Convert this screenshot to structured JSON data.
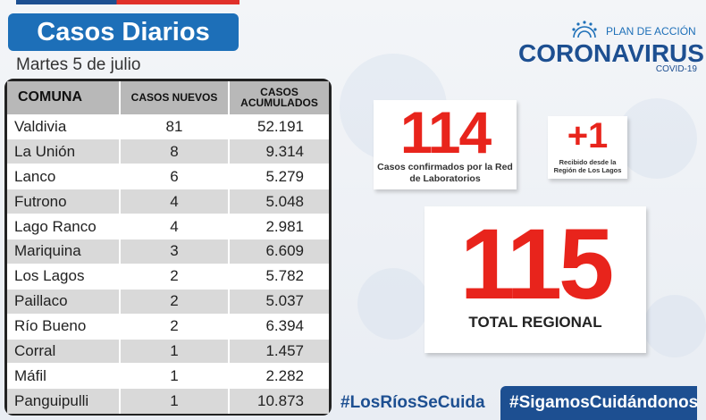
{
  "header": {
    "title": "Casos Diarios",
    "date": "Martes 5 de  julio"
  },
  "logo": {
    "plan": "PLAN DE ACCIÓN",
    "name": "CORONAVIRUS",
    "sub": "COVID-19"
  },
  "table": {
    "headers": [
      "COMUNA",
      "CASOS NUEVOS",
      "CASOS ACUMULADOS"
    ],
    "rows": [
      {
        "comuna": "Valdivia",
        "nuevos": "81",
        "acumulados": "52.191"
      },
      {
        "comuna": "La Unión",
        "nuevos": "8",
        "acumulados": "9.314"
      },
      {
        "comuna": "Lanco",
        "nuevos": "6",
        "acumulados": "5.279"
      },
      {
        "comuna": "Futrono",
        "nuevos": "4",
        "acumulados": "5.048"
      },
      {
        "comuna": "Lago Ranco",
        "nuevos": "4",
        "acumulados": "2.981"
      },
      {
        "comuna": "Mariquina",
        "nuevos": "3",
        "acumulados": "6.609"
      },
      {
        "comuna": "Los Lagos",
        "nuevos": "2",
        "acumulados": "5.782"
      },
      {
        "comuna": "Paillaco",
        "nuevos": "2",
        "acumulados": "5.037"
      },
      {
        "comuna": "Río Bueno",
        "nuevos": "2",
        "acumulados": "6.394"
      },
      {
        "comuna": "Corral",
        "nuevos": "1",
        "acumulados": "1.457"
      },
      {
        "comuna": "Máfil",
        "nuevos": "1",
        "acumulados": "2.282"
      },
      {
        "comuna": "Panguipulli",
        "nuevos": "1",
        "acumulados": "10.873"
      }
    ]
  },
  "labs": {
    "value": "114",
    "caption": "Casos confirmados por la Red de Laboratorios"
  },
  "los_lagos": {
    "value": "+1",
    "caption": "Recibido desde la Región de Los Lagos"
  },
  "total": {
    "value": "115",
    "caption": "TOTAL REGIONAL"
  },
  "hashtags": {
    "left": "#LosRíosSeCuida",
    "right": "#SigamosCuidándonos"
  },
  "colors": {
    "accent_blue": "#1d6fb8",
    "dark_blue": "#1d4f91",
    "red": "#e8241c"
  }
}
